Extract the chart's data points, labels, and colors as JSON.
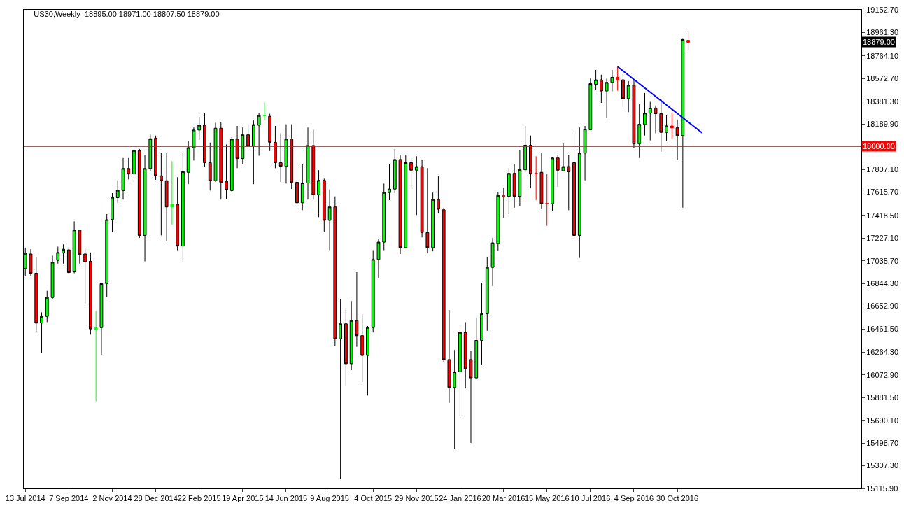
{
  "chart_data": {
    "type": "candlestick",
    "title": "US30,Weekly  18895.00 18971.00 18807.50 18879.00",
    "x": [
      "2014-07-13",
      "2014-07-20",
      "2014-07-27",
      "2014-08-03",
      "2014-08-10",
      "2014-08-17",
      "2014-08-24",
      "2014-08-31",
      "2014-09-07",
      "2014-09-14",
      "2014-09-21",
      "2014-09-28",
      "2014-10-05",
      "2014-10-12",
      "2014-10-19",
      "2014-10-26",
      "2014-11-02",
      "2014-11-09",
      "2014-11-16",
      "2014-11-23",
      "2014-11-30",
      "2014-12-07",
      "2014-12-14",
      "2014-12-21",
      "2014-12-28",
      "2015-01-04",
      "2015-01-11",
      "2015-01-18",
      "2015-01-25",
      "2015-02-01",
      "2015-02-08",
      "2015-02-15",
      "2015-02-22",
      "2015-03-01",
      "2015-03-08",
      "2015-03-15",
      "2015-03-22",
      "2015-03-29",
      "2015-04-05",
      "2015-04-12",
      "2015-04-19",
      "2015-04-26",
      "2015-05-03",
      "2015-05-10",
      "2015-05-17",
      "2015-05-24",
      "2015-05-31",
      "2015-06-07",
      "2015-06-14",
      "2015-06-21",
      "2015-06-28",
      "2015-07-05",
      "2015-07-12",
      "2015-07-19",
      "2015-07-26",
      "2015-08-02",
      "2015-08-09",
      "2015-08-16",
      "2015-08-23",
      "2015-08-30",
      "2015-09-06",
      "2015-09-13",
      "2015-09-20",
      "2015-09-27",
      "2015-10-04",
      "2015-10-11",
      "2015-10-18",
      "2015-10-25",
      "2015-11-01",
      "2015-11-08",
      "2015-11-15",
      "2015-11-22",
      "2015-11-29",
      "2015-12-06",
      "2015-12-13",
      "2015-12-20",
      "2015-12-27",
      "2016-01-03",
      "2016-01-10",
      "2016-01-17",
      "2016-01-24",
      "2016-01-31",
      "2016-02-07",
      "2016-02-14",
      "2016-02-21",
      "2016-02-28",
      "2016-03-06",
      "2016-03-13",
      "2016-03-20",
      "2016-03-27",
      "2016-04-03",
      "2016-04-10",
      "2016-04-17",
      "2016-04-24",
      "2016-05-01",
      "2016-05-08",
      "2016-05-15",
      "2016-05-22",
      "2016-05-29",
      "2016-06-05",
      "2016-06-12",
      "2016-06-19",
      "2016-06-26",
      "2016-07-03",
      "2016-07-10",
      "2016-07-17",
      "2016-07-24",
      "2016-07-31",
      "2016-08-07",
      "2016-08-14",
      "2016-08-21",
      "2016-08-28",
      "2016-09-04",
      "2016-09-11",
      "2016-09-18",
      "2016-09-25",
      "2016-10-02",
      "2016-10-09",
      "2016-10-16",
      "2016-10-23",
      "2016-10-30",
      "2016-11-06",
      "2016-11-13"
    ],
    "ohlc": [
      [
        16971,
        17147,
        16904,
        17098
      ],
      [
        17093,
        17133,
        16909,
        16931
      ],
      [
        16931,
        17066,
        16439,
        16510
      ],
      [
        16510,
        16601,
        16261,
        16566
      ],
      [
        16566,
        16782,
        16518,
        16726
      ],
      [
        16726,
        17079,
        16715,
        17023
      ],
      [
        17039,
        17155,
        17012,
        17106
      ],
      [
        17101,
        17174,
        17012,
        17133
      ],
      [
        17128,
        17147,
        16931,
        16936
      ],
      [
        16942,
        17368,
        16931,
        17295
      ],
      [
        17295,
        17300,
        17012,
        17088
      ],
      [
        17093,
        17147,
        16669,
        17025
      ],
      [
        17031,
        17106,
        16412,
        16461
      ],
      [
        16453,
        16612,
        15851,
        16469
      ],
      [
        16472,
        16850,
        16242,
        16842
      ],
      [
        16842,
        17430,
        16728,
        17382
      ],
      [
        17385,
        17606,
        17282,
        17571
      ],
      [
        17568,
        17714,
        17525,
        17630
      ],
      [
        17628,
        17903,
        17552,
        17814
      ],
      [
        17814,
        17903,
        17722,
        17768
      ],
      [
        17768,
        17992,
        17714,
        17965
      ],
      [
        17965,
        17979,
        17228,
        17250
      ],
      [
        17250,
        17930,
        17031,
        17814
      ],
      [
        17814,
        18100,
        17795,
        18065
      ],
      [
        18070,
        18092,
        17719,
        17754
      ],
      [
        17752,
        17944,
        17250,
        17711
      ],
      [
        17711,
        17944,
        17201,
        17490
      ],
      [
        17490,
        17876,
        17341,
        17512
      ],
      [
        17512,
        17741,
        17125,
        17160
      ],
      [
        17160,
        17957,
        17031,
        17787
      ],
      [
        17782,
        18046,
        17682,
        17990
      ],
      [
        17990,
        18160,
        17882,
        18138
      ],
      [
        18138,
        18249,
        18057,
        18179
      ],
      [
        18179,
        18281,
        17827,
        17863
      ],
      [
        17863,
        18033,
        17628,
        17711
      ],
      [
        17711,
        18200,
        17701,
        18154
      ],
      [
        18154,
        18208,
        17552,
        17698
      ],
      [
        17706,
        18017,
        17557,
        17633
      ],
      [
        17628,
        18079,
        17614,
        18062
      ],
      [
        18062,
        18173,
        17817,
        17898
      ],
      [
        17898,
        18160,
        17849,
        18098
      ],
      [
        18098,
        18187,
        17998,
        18003
      ],
      [
        18003,
        18219,
        17682,
        18184
      ],
      [
        18179,
        18281,
        17922,
        18260
      ],
      [
        18260,
        18370,
        18219,
        18262
      ],
      [
        18254,
        18276,
        17962,
        18035
      ],
      [
        18035,
        18173,
        17817,
        17863
      ],
      [
        17863,
        18111,
        17701,
        17833
      ],
      [
        17833,
        18187,
        17687,
        18062
      ],
      [
        18062,
        18187,
        17641,
        17698
      ],
      [
        17698,
        17849,
        17452,
        17525
      ],
      [
        17525,
        17849,
        17463,
        17692
      ],
      [
        17692,
        18160,
        17552,
        18008
      ],
      [
        18008,
        18141,
        17552,
        17593
      ],
      [
        17593,
        17800,
        17404,
        17714
      ],
      [
        17714,
        17728,
        17277,
        17377
      ],
      [
        17377,
        17638,
        17125,
        17490
      ],
      [
        17490,
        17579,
        16315,
        16377
      ],
      [
        16377,
        16709,
        15197,
        16504
      ],
      [
        16504,
        16634,
        15978,
        16167
      ],
      [
        16167,
        16696,
        16113,
        16531
      ],
      [
        16531,
        16939,
        16310,
        16404
      ],
      [
        16404,
        16585,
        16013,
        16237
      ],
      [
        16237,
        16485,
        15899,
        16472
      ],
      [
        16472,
        17125,
        16431,
        17047
      ],
      [
        17047,
        17223,
        16890,
        17193
      ],
      [
        17193,
        17687,
        17125,
        17611
      ],
      [
        17611,
        17854,
        17547,
        17641
      ],
      [
        17641,
        17979,
        17606,
        17890
      ],
      [
        17890,
        17930,
        17093,
        17147
      ],
      [
        17147,
        17930,
        17147,
        17863
      ],
      [
        17863,
        17903,
        17655,
        17800
      ],
      [
        17800,
        17917,
        17422,
        17830
      ],
      [
        17830,
        17884,
        17233,
        17274
      ],
      [
        17274,
        17817,
        17098,
        17147
      ],
      [
        17147,
        17611,
        17115,
        17552
      ],
      [
        17552,
        17754,
        17439,
        17471
      ],
      [
        17466,
        17484,
        16180,
        16202
      ],
      [
        16202,
        16620,
        15837,
        15967
      ],
      [
        15967,
        16283,
        15446,
        16099
      ],
      [
        16099,
        16458,
        15724,
        16431
      ],
      [
        16431,
        16518,
        15959,
        16126
      ],
      [
        16202,
        16275,
        15500,
        16048
      ],
      [
        16048,
        16558,
        16034,
        16364
      ],
      [
        16364,
        16850,
        16161,
        16588
      ],
      [
        16588,
        17066,
        16445,
        16980
      ],
      [
        16980,
        17228,
        16823,
        17187
      ],
      [
        17182,
        17614,
        17120,
        17587
      ],
      [
        17587,
        17652,
        17398,
        17579
      ],
      [
        17579,
        17817,
        17430,
        17773
      ],
      [
        17773,
        17854,
        17484,
        17579
      ],
      [
        17579,
        17971,
        17498,
        17803
      ],
      [
        17803,
        18173,
        17782,
        18011
      ],
      [
        18011,
        18092,
        17647,
        17768
      ],
      [
        17776,
        17917,
        17547,
        17771
      ],
      [
        17782,
        17944,
        17471,
        17517
      ],
      [
        17520,
        17768,
        17331,
        17517
      ],
      [
        17517,
        17908,
        17457,
        17903
      ],
      [
        17903,
        17930,
        17660,
        17800
      ],
      [
        17795,
        18025,
        17790,
        17830
      ],
      [
        17830,
        17930,
        17463,
        17787
      ],
      [
        17863,
        18124,
        17206,
        17250
      ],
      [
        17250,
        18160,
        17060,
        17944
      ],
      [
        17944,
        18173,
        17714,
        18146
      ],
      [
        18141,
        18573,
        18141,
        18530
      ],
      [
        18524,
        18646,
        18476,
        18562
      ],
      [
        18562,
        18605,
        18368,
        18468
      ],
      [
        18468,
        18573,
        18241,
        18540
      ],
      [
        18540,
        18646,
        18465,
        18584
      ],
      [
        18584,
        18673,
        18470,
        18562
      ],
      [
        18562,
        18611,
        18330,
        18403
      ],
      [
        18403,
        18551,
        18289,
        18516
      ],
      [
        18516,
        18557,
        17984,
        18022
      ],
      [
        18022,
        18362,
        17903,
        18187
      ],
      [
        18187,
        18451,
        18092,
        18281
      ],
      [
        18281,
        18376,
        18052,
        18324
      ],
      [
        18324,
        18346,
        18111,
        18276
      ],
      [
        18276,
        18403,
        17957,
        18119
      ],
      [
        18119,
        18262,
        18044,
        18173
      ],
      [
        18173,
        18281,
        18065,
        18157
      ],
      [
        18157,
        18227,
        17884,
        18092
      ],
      [
        18092,
        18908,
        17484,
        18902
      ],
      [
        18895,
        18971,
        18807.5,
        18879
      ]
    ],
    "colors": [
      "#00ff00",
      "#ff0000",
      "#ff0000",
      "#00ff00",
      "#00ff00",
      "#00ff00",
      "#00ff00",
      "#00ff00",
      "#ff0000",
      "#00ff00",
      "#ff0000",
      "#ff0000",
      "#ff0000",
      "#00ff00",
      "#00ff00",
      "#00ff00",
      "#00ff00",
      "#00ff00",
      "#00ff00",
      "#ff0000",
      "#00ff00",
      "#ff0000",
      "#00ff00",
      "#00ff00",
      "#ff0000",
      "#ff0000",
      "#ff0000",
      "#00ff00",
      "#ff0000",
      "#00ff00",
      "#00ff00",
      "#00ff00",
      "#00ff00",
      "#ff0000",
      "#ff0000",
      "#00ff00",
      "#ff0000",
      "#ff0000",
      "#00ff00",
      "#ff0000",
      "#00ff00",
      "#ff0000",
      "#00ff00",
      "#00ff00",
      "#00ff00",
      "#ff0000",
      "#ff0000",
      "#ff0000",
      "#00ff00",
      "#ff0000",
      "#ff0000",
      "#00ff00",
      "#00ff00",
      "#ff0000",
      "#00ff00",
      "#ff0000",
      "#00ff00",
      "#ff0000",
      "#00ff00",
      "#ff0000",
      "#00ff00",
      "#ff0000",
      "#ff0000",
      "#00ff00",
      "#00ff00",
      "#00ff00",
      "#00ff00",
      "#00ff00",
      "#00ff00",
      "#ff0000",
      "#00ff00",
      "#ff0000",
      "#00ff00",
      "#ff0000",
      "#ff0000",
      "#00ff00",
      "#ff0000",
      "#ff0000",
      "#ff0000",
      "#00ff00",
      "#00ff00",
      "#ff0000",
      "#ff0000",
      "#00ff00",
      "#00ff00",
      "#00ff00",
      "#00ff00",
      "#00ff00",
      "#ff0000",
      "#00ff00",
      "#ff0000",
      "#00ff00",
      "#00ff00",
      "#ff0000",
      "#ff0000",
      "#ff0000",
      "#ff0000",
      "#00ff00",
      "#ff0000",
      "#00ff00",
      "#ff0000",
      "#ff0000",
      "#00ff00",
      "#00ff00",
      "#00ff00",
      "#00ff00",
      "#ff0000",
      "#00ff00",
      "#00ff00",
      "#ff0000",
      "#ff0000",
      "#00ff00",
      "#ff0000",
      "#00ff00",
      "#00ff00",
      "#00ff00",
      "#ff0000",
      "#ff0000",
      "#00ff00",
      "#ff0000",
      "#ff0000",
      "#00ff00",
      "#ff0000"
    ],
    "series": [
      {
        "type": "line",
        "x": [
          "2016-08-14",
          "2016-12-01"
        ],
        "values": [
          18673,
          18114
        ],
        "color": "#0000ff"
      }
    ],
    "xlim": [
      "2014-07-11",
      "2017-06-24"
    ],
    "xticks": [
      {
        "value": "2014-07-13",
        "label": "13 Jul 2014"
      },
      {
        "value": "2014-09-07",
        "label": "7 Sep 2014"
      },
      {
        "value": "2014-11-02",
        "label": "2 Nov 2014"
      },
      {
        "value": "2014-12-28",
        "label": "28 Dec 2014"
      },
      {
        "value": "2015-02-22",
        "label": "22 Feb 2015"
      },
      {
        "value": "2015-04-19",
        "label": "19 Apr 2015"
      },
      {
        "value": "2015-06-14",
        "label": "14 Jun 2015"
      },
      {
        "value": "2015-08-09",
        "label": "9 Aug 2015"
      },
      {
        "value": "2015-10-04",
        "label": "4 Oct 2015"
      },
      {
        "value": "2015-11-29",
        "label": "29 Nov 2015"
      },
      {
        "value": "2016-01-24",
        "label": "24 Jan 2016"
      },
      {
        "value": "2016-03-20",
        "label": "20 Mar 2016"
      },
      {
        "value": "2016-05-15",
        "label": "15 May 2016"
      },
      {
        "value": "2016-07-10",
        "label": "10 Jul 2016"
      },
      {
        "value": "2016-09-04",
        "label": "4 Sep 2016"
      },
      {
        "value": "2016-10-30",
        "label": "30 Oct 2016"
      }
    ],
    "ylim": [
      15115.9,
      19152.7
    ],
    "yticks": [
      {
        "value": 19152.7,
        "label": "19152.70"
      },
      {
        "value": 18961.3,
        "label": "18961.30"
      },
      {
        "value": 18764.1,
        "label": "18764.10"
      },
      {
        "value": 18572.7,
        "label": "18572.70"
      },
      {
        "value": 18381.3,
        "label": "18381.30"
      },
      {
        "value": 18189.9,
        "label": "18189.90"
      },
      {
        "value": 17807.1,
        "label": "17807.10"
      },
      {
        "value": 17615.7,
        "label": "17615.70"
      },
      {
        "value": 17418.5,
        "label": "17418.50"
      },
      {
        "value": 17227.1,
        "label": "17227.10"
      },
      {
        "value": 17035.7,
        "label": "17035.70"
      },
      {
        "value": 16844.3,
        "label": "16844.30"
      },
      {
        "value": 16652.9,
        "label": "16652.90"
      },
      {
        "value": 16461.5,
        "label": "16461.50"
      },
      {
        "value": 16264.3,
        "label": "16264.30"
      },
      {
        "value": 16072.9,
        "label": "16072.90"
      },
      {
        "value": 15881.5,
        "label": "15881.50"
      },
      {
        "value": 15690.1,
        "label": "15690.10"
      },
      {
        "value": 15498.7,
        "label": "15498.70"
      },
      {
        "value": 15307.3,
        "label": "15307.30"
      },
      {
        "value": 15115.9,
        "label": "15115.90"
      }
    ],
    "ref_lines": [
      {
        "axis": "y",
        "value": 18000,
        "label": "18000.00",
        "color": "#ff0000"
      }
    ],
    "annotations": [
      "18879.00"
    ]
  }
}
